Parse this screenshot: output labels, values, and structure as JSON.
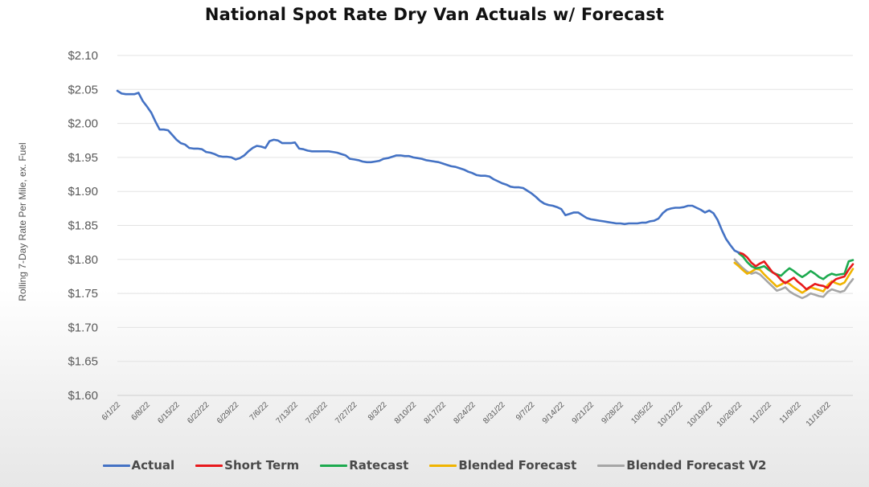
{
  "chart_data": {
    "type": "line",
    "title": "National Spot Rate Dry Van Actuals w/ Forecast",
    "ylabel": "Rolling 7-Day Rate Per Mile, ex. Fuel",
    "xlabel": "",
    "ylim": [
      1.6,
      2.1
    ],
    "y_ticks": [
      2.1,
      2.05,
      2.0,
      1.95,
      1.9,
      1.85,
      1.8,
      1.75,
      1.7,
      1.65,
      1.6
    ],
    "y_tick_labels": [
      "$2.10",
      "$2.05",
      "$2.00",
      "$1.95",
      "$1.90",
      "$1.85",
      "$1.80",
      "$1.75",
      "$1.70",
      "$1.65",
      "$1.60"
    ],
    "x_tick_labels": [
      "6/1/22",
      "6/8/22",
      "6/15/22",
      "6/22/22",
      "6/29/22",
      "7/6/22",
      "7/13/22",
      "7/20/22",
      "7/27/22",
      "8/3/22",
      "8/10/22",
      "8/17/22",
      "8/24/22",
      "8/31/22",
      "9/7/22",
      "9/14/22",
      "9/21/22",
      "9/28/22",
      "10/5/22",
      "10/12/22",
      "10/19/22",
      "10/26/22",
      "11/2/22",
      "11/9/22",
      "11/16/22"
    ],
    "x_range_days": [
      0,
      174
    ],
    "grid": "horizontal",
    "legend_position": "bottom",
    "series": [
      {
        "name": "Actual",
        "color": "#4472C4",
        "points": [
          [
            0,
            2.048
          ],
          [
            1,
            2.044
          ],
          [
            2,
            2.043
          ],
          [
            3,
            2.043
          ],
          [
            4,
            2.043
          ],
          [
            5,
            2.045
          ],
          [
            6,
            2.033
          ],
          [
            7,
            2.025
          ],
          [
            8,
            2.016
          ],
          [
            9,
            2.003
          ],
          [
            10,
            1.991
          ],
          [
            11,
            1.991
          ],
          [
            12,
            1.99
          ],
          [
            13,
            1.983
          ],
          [
            14,
            1.976
          ],
          [
            15,
            1.971
          ],
          [
            16,
            1.969
          ],
          [
            17,
            1.964
          ],
          [
            18,
            1.963
          ],
          [
            19,
            1.963
          ],
          [
            20,
            1.962
          ],
          [
            21,
            1.958
          ],
          [
            22,
            1.957
          ],
          [
            23,
            1.955
          ],
          [
            24,
            1.952
          ],
          [
            25,
            1.951
          ],
          [
            26,
            1.951
          ],
          [
            27,
            1.95
          ],
          [
            28,
            1.947
          ],
          [
            29,
            1.949
          ],
          [
            30,
            1.953
          ],
          [
            31,
            1.959
          ],
          [
            32,
            1.964
          ],
          [
            33,
            1.967
          ],
          [
            34,
            1.966
          ],
          [
            35,
            1.964
          ],
          [
            36,
            1.974
          ],
          [
            37,
            1.976
          ],
          [
            38,
            1.975
          ],
          [
            39,
            1.971
          ],
          [
            40,
            1.971
          ],
          [
            41,
            1.971
          ],
          [
            42,
            1.972
          ],
          [
            43,
            1.963
          ],
          [
            44,
            1.962
          ],
          [
            45,
            1.96
          ],
          [
            46,
            1.959
          ],
          [
            47,
            1.959
          ],
          [
            48,
            1.959
          ],
          [
            49,
            1.959
          ],
          [
            50,
            1.959
          ],
          [
            51,
            1.958
          ],
          [
            52,
            1.957
          ],
          [
            53,
            1.955
          ],
          [
            54,
            1.953
          ],
          [
            55,
            1.948
          ],
          [
            56,
            1.947
          ],
          [
            57,
            1.946
          ],
          [
            58,
            1.944
          ],
          [
            59,
            1.943
          ],
          [
            60,
            1.943
          ],
          [
            61,
            1.944
          ],
          [
            62,
            1.945
          ],
          [
            63,
            1.948
          ],
          [
            64,
            1.949
          ],
          [
            65,
            1.951
          ],
          [
            66,
            1.953
          ],
          [
            67,
            1.953
          ],
          [
            68,
            1.952
          ],
          [
            69,
            1.952
          ],
          [
            70,
            1.95
          ],
          [
            71,
            1.949
          ],
          [
            72,
            1.948
          ],
          [
            73,
            1.946
          ],
          [
            74,
            1.945
          ],
          [
            75,
            1.944
          ],
          [
            76,
            1.943
          ],
          [
            77,
            1.941
          ],
          [
            78,
            1.939
          ],
          [
            79,
            1.937
          ],
          [
            80,
            1.936
          ],
          [
            81,
            1.934
          ],
          [
            82,
            1.932
          ],
          [
            83,
            1.929
          ],
          [
            84,
            1.927
          ],
          [
            85,
            1.924
          ],
          [
            86,
            1.923
          ],
          [
            87,
            1.923
          ],
          [
            88,
            1.922
          ],
          [
            89,
            1.918
          ],
          [
            90,
            1.915
          ],
          [
            91,
            1.912
          ],
          [
            92,
            1.91
          ],
          [
            93,
            1.907
          ],
          [
            94,
            1.906
          ],
          [
            95,
            1.906
          ],
          [
            96,
            1.905
          ],
          [
            97,
            1.901
          ],
          [
            98,
            1.897
          ],
          [
            99,
            1.892
          ],
          [
            100,
            1.886
          ],
          [
            101,
            1.882
          ],
          [
            102,
            1.88
          ],
          [
            103,
            1.879
          ],
          [
            104,
            1.877
          ],
          [
            105,
            1.874
          ],
          [
            106,
            1.865
          ],
          [
            107,
            1.867
          ],
          [
            108,
            1.869
          ],
          [
            109,
            1.869
          ],
          [
            110,
            1.865
          ],
          [
            111,
            1.861
          ],
          [
            112,
            1.859
          ],
          [
            113,
            1.858
          ],
          [
            114,
            1.857
          ],
          [
            115,
            1.856
          ],
          [
            116,
            1.855
          ],
          [
            117,
            1.854
          ],
          [
            118,
            1.853
          ],
          [
            119,
            1.853
          ],
          [
            120,
            1.852
          ],
          [
            121,
            1.853
          ],
          [
            122,
            1.853
          ],
          [
            123,
            1.853
          ],
          [
            124,
            1.854
          ],
          [
            125,
            1.854
          ],
          [
            126,
            1.856
          ],
          [
            127,
            1.857
          ],
          [
            128,
            1.86
          ],
          [
            129,
            1.868
          ],
          [
            130,
            1.873
          ],
          [
            131,
            1.875
          ],
          [
            132,
            1.876
          ],
          [
            133,
            1.876
          ],
          [
            134,
            1.877
          ],
          [
            135,
            1.879
          ],
          [
            136,
            1.879
          ],
          [
            137,
            1.876
          ],
          [
            138,
            1.873
          ],
          [
            139,
            1.869
          ],
          [
            140,
            1.872
          ],
          [
            141,
            1.868
          ],
          [
            142,
            1.858
          ],
          [
            143,
            1.843
          ],
          [
            144,
            1.83
          ],
          [
            145,
            1.821
          ],
          [
            146,
            1.813
          ],
          [
            147,
            1.81
          ]
        ]
      },
      {
        "name": "Short Term",
        "color": "#E8191C",
        "points": [
          [
            147,
            1.81
          ],
          [
            148,
            1.808
          ],
          [
            149,
            1.803
          ],
          [
            150,
            1.795
          ],
          [
            151,
            1.79
          ],
          [
            152,
            1.794
          ],
          [
            153,
            1.797
          ],
          [
            154,
            1.789
          ],
          [
            155,
            1.781
          ],
          [
            156,
            1.777
          ],
          [
            157,
            1.77
          ],
          [
            158,
            1.765
          ],
          [
            159,
            1.769
          ],
          [
            160,
            1.773
          ],
          [
            161,
            1.767
          ],
          [
            162,
            1.762
          ],
          [
            163,
            1.756
          ],
          [
            164,
            1.76
          ],
          [
            165,
            1.764
          ],
          [
            166,
            1.762
          ],
          [
            167,
            1.761
          ],
          [
            168,
            1.758
          ],
          [
            169,
            1.766
          ],
          [
            170,
            1.771
          ],
          [
            171,
            1.773
          ],
          [
            172,
            1.775
          ],
          [
            173,
            1.785
          ],
          [
            174,
            1.793
          ]
        ]
      },
      {
        "name": "Ratecast",
        "color": "#1DAA4F",
        "points": [
          [
            147,
            1.809
          ],
          [
            148,
            1.804
          ],
          [
            149,
            1.796
          ],
          [
            150,
            1.79
          ],
          [
            151,
            1.787
          ],
          [
            152,
            1.788
          ],
          [
            153,
            1.79
          ],
          [
            154,
            1.785
          ],
          [
            155,
            1.781
          ],
          [
            156,
            1.778
          ],
          [
            157,
            1.776
          ],
          [
            158,
            1.782
          ],
          [
            159,
            1.787
          ],
          [
            160,
            1.783
          ],
          [
            161,
            1.778
          ],
          [
            162,
            1.774
          ],
          [
            163,
            1.778
          ],
          [
            164,
            1.783
          ],
          [
            165,
            1.779
          ],
          [
            166,
            1.774
          ],
          [
            167,
            1.771
          ],
          [
            168,
            1.776
          ],
          [
            169,
            1.779
          ],
          [
            170,
            1.777
          ],
          [
            171,
            1.778
          ],
          [
            172,
            1.779
          ],
          [
            173,
            1.797
          ],
          [
            174,
            1.799
          ]
        ]
      },
      {
        "name": "Blended Forecast",
        "color": "#F0B400",
        "points": [
          [
            146,
            1.795
          ],
          [
            147,
            1.79
          ],
          [
            148,
            1.784
          ],
          [
            149,
            1.779
          ],
          [
            150,
            1.782
          ],
          [
            151,
            1.786
          ],
          [
            152,
            1.785
          ],
          [
            153,
            1.778
          ],
          [
            154,
            1.772
          ],
          [
            155,
            1.766
          ],
          [
            156,
            1.76
          ],
          [
            157,
            1.763
          ],
          [
            158,
            1.767
          ],
          [
            159,
            1.764
          ],
          [
            160,
            1.759
          ],
          [
            161,
            1.755
          ],
          [
            162,
            1.751
          ],
          [
            163,
            1.755
          ],
          [
            164,
            1.759
          ],
          [
            165,
            1.757
          ],
          [
            166,
            1.755
          ],
          [
            167,
            1.753
          ],
          [
            168,
            1.762
          ],
          [
            169,
            1.768
          ],
          [
            170,
            1.765
          ],
          [
            171,
            1.763
          ],
          [
            172,
            1.766
          ],
          [
            173,
            1.776
          ],
          [
            174,
            1.786
          ]
        ]
      },
      {
        "name": "Blended Forecast V2",
        "color": "#A6A6A6",
        "points": [
          [
            146,
            1.8
          ],
          [
            147,
            1.793
          ],
          [
            148,
            1.787
          ],
          [
            149,
            1.782
          ],
          [
            150,
            1.779
          ],
          [
            151,
            1.781
          ],
          [
            152,
            1.778
          ],
          [
            153,
            1.772
          ],
          [
            154,
            1.766
          ],
          [
            155,
            1.76
          ],
          [
            156,
            1.754
          ],
          [
            157,
            1.756
          ],
          [
            158,
            1.759
          ],
          [
            159,
            1.753
          ],
          [
            160,
            1.749
          ],
          [
            161,
            1.746
          ],
          [
            162,
            1.743
          ],
          [
            163,
            1.746
          ],
          [
            164,
            1.75
          ],
          [
            165,
            1.748
          ],
          [
            166,
            1.746
          ],
          [
            167,
            1.745
          ],
          [
            168,
            1.752
          ],
          [
            169,
            1.756
          ],
          [
            170,
            1.754
          ],
          [
            171,
            1.752
          ],
          [
            172,
            1.754
          ],
          [
            173,
            1.763
          ],
          [
            174,
            1.771
          ]
        ]
      }
    ]
  }
}
